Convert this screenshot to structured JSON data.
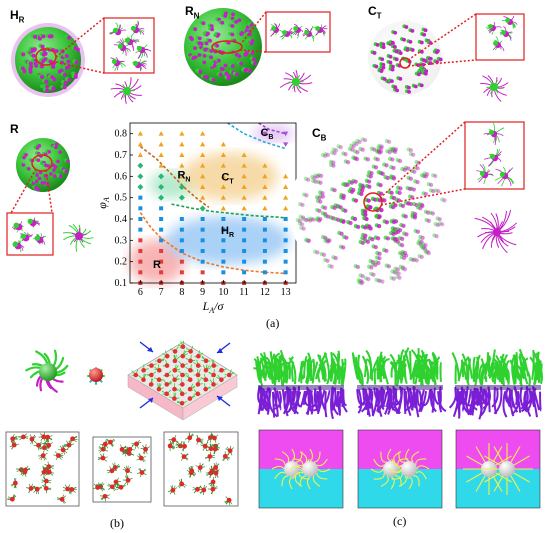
{
  "panel_labels": {
    "HR": {
      "main": "H",
      "sub": "R"
    },
    "RN": {
      "main": "R",
      "sub": "N"
    },
    "CT": {
      "main": "C",
      "sub": "T"
    },
    "R": {
      "main": "R",
      "sub": ""
    },
    "CB": {
      "main": "C",
      "sub": "B"
    }
  },
  "captions": {
    "a": "(a)",
    "b": "(b)",
    "c": "(c)"
  },
  "colors": {
    "green": "#2ed12e",
    "magenta": "#c51fc5",
    "purple": "#7a1fd6",
    "red_box": "#e02020",
    "pink_bg": "#ee4cf0",
    "cyan_bg": "#2fd9ea",
    "yellow_line": "#f2f24a"
  },
  "chart_data": {
    "type": "scatter",
    "xlabel": "L_A/σ",
    "ylabel": "φ_A",
    "xlim": [
      5.5,
      13.5
    ],
    "ylim": [
      0.1,
      0.85
    ],
    "xticks": [
      6,
      7,
      8,
      9,
      10,
      11,
      12,
      13
    ],
    "yticks": [
      0.1,
      0.2,
      0.3,
      0.4,
      0.5,
      0.6,
      0.7,
      0.8
    ],
    "region_labels": [
      {
        "main": "R",
        "sub": "",
        "x": 6.8,
        "y": 0.17
      },
      {
        "main": "H",
        "sub": "R",
        "x": 10.2,
        "y": 0.33
      },
      {
        "main": "R",
        "sub": "N",
        "x": 8.1,
        "y": 0.59
      },
      {
        "main": "C",
        "sub": "T",
        "x": 10.2,
        "y": 0.58
      },
      {
        "main": "C",
        "sub": "B",
        "x": 12.1,
        "y": 0.79
      }
    ],
    "series": [
      {
        "phase": "R",
        "marker": "square",
        "color": "#e03c3c",
        "points": [
          [
            6,
            0.1
          ],
          [
            6,
            0.15
          ],
          [
            6,
            0.2
          ],
          [
            6,
            0.25
          ],
          [
            6,
            0.3
          ],
          [
            7,
            0.1
          ],
          [
            7,
            0.15
          ],
          [
            7,
            0.2
          ],
          [
            7,
            0.25
          ],
          [
            8,
            0.1
          ],
          [
            8,
            0.15
          ],
          [
            8,
            0.2
          ],
          [
            9,
            0.1
          ],
          [
            9,
            0.15
          ],
          [
            10,
            0.1
          ],
          [
            11,
            0.1
          ],
          [
            12,
            0.1
          ],
          [
            13,
            0.1
          ]
        ]
      },
      {
        "phase": "H_R",
        "marker": "square",
        "color": "#1a8fe0",
        "points": [
          [
            6,
            0.35
          ],
          [
            6,
            0.4
          ],
          [
            6,
            0.45
          ],
          [
            6,
            0.5
          ],
          [
            7,
            0.3
          ],
          [
            7,
            0.35
          ],
          [
            7,
            0.4
          ],
          [
            7,
            0.45
          ],
          [
            8,
            0.25
          ],
          [
            8,
            0.3
          ],
          [
            8,
            0.35
          ],
          [
            8,
            0.4
          ],
          [
            9,
            0.2
          ],
          [
            9,
            0.25
          ],
          [
            9,
            0.3
          ],
          [
            9,
            0.35
          ],
          [
            9,
            0.4
          ],
          [
            10,
            0.15
          ],
          [
            10,
            0.2
          ],
          [
            10,
            0.25
          ],
          [
            10,
            0.3
          ],
          [
            10,
            0.35
          ],
          [
            10,
            0.4
          ],
          [
            11,
            0.15
          ],
          [
            11,
            0.2
          ],
          [
            11,
            0.25
          ],
          [
            11,
            0.3
          ],
          [
            11,
            0.35
          ],
          [
            11,
            0.4
          ],
          [
            12,
            0.15
          ],
          [
            12,
            0.2
          ],
          [
            12,
            0.25
          ],
          [
            12,
            0.3
          ],
          [
            12,
            0.35
          ],
          [
            12,
            0.4
          ],
          [
            13,
            0.15
          ],
          [
            13,
            0.2
          ],
          [
            13,
            0.25
          ],
          [
            13,
            0.3
          ],
          [
            13,
            0.35
          ],
          [
            13,
            0.4
          ]
        ]
      },
      {
        "phase": "R_N",
        "marker": "diamond",
        "color": "#2bb673",
        "points": [
          [
            6,
            0.55
          ],
          [
            6,
            0.6
          ],
          [
            6,
            0.65
          ],
          [
            7,
            0.5
          ],
          [
            7,
            0.55
          ],
          [
            7,
            0.6
          ],
          [
            8,
            0.5
          ],
          [
            8,
            0.55
          ],
          [
            9,
            0.45
          ]
        ]
      },
      {
        "phase": "C_T",
        "marker": "triangle-up",
        "color": "#f0a21e",
        "points": [
          [
            6,
            0.7
          ],
          [
            6,
            0.75
          ],
          [
            6,
            0.8
          ],
          [
            7,
            0.65
          ],
          [
            7,
            0.7
          ],
          [
            7,
            0.75
          ],
          [
            7,
            0.8
          ],
          [
            8,
            0.6
          ],
          [
            8,
            0.65
          ],
          [
            8,
            0.7
          ],
          [
            8,
            0.75
          ],
          [
            8,
            0.8
          ],
          [
            9,
            0.5
          ],
          [
            9,
            0.55
          ],
          [
            9,
            0.6
          ],
          [
            9,
            0.65
          ],
          [
            9,
            0.7
          ],
          [
            9,
            0.75
          ],
          [
            9,
            0.8
          ],
          [
            10,
            0.45
          ],
          [
            10,
            0.5
          ],
          [
            10,
            0.55
          ],
          [
            10,
            0.6
          ],
          [
            10,
            0.65
          ],
          [
            10,
            0.7
          ],
          [
            10,
            0.75
          ],
          [
            11,
            0.45
          ],
          [
            11,
            0.5
          ],
          [
            11,
            0.55
          ],
          [
            11,
            0.6
          ],
          [
            11,
            0.65
          ],
          [
            11,
            0.7
          ],
          [
            12,
            0.45
          ],
          [
            12,
            0.5
          ],
          [
            12,
            0.55
          ],
          [
            12,
            0.6
          ],
          [
            12,
            0.65
          ],
          [
            13,
            0.45
          ],
          [
            13,
            0.5
          ],
          [
            13,
            0.55
          ],
          [
            13,
            0.6
          ]
        ]
      },
      {
        "phase": "C_B",
        "marker": "triangle-down",
        "color": "#a455d6",
        "points": [
          [
            12,
            0.8
          ],
          [
            13,
            0.75
          ],
          [
            13,
            0.8
          ]
        ]
      }
    ],
    "boundaries": [
      {
        "color": "#ee7722",
        "points": [
          [
            6,
            0.43
          ],
          [
            6.5,
            0.36
          ],
          [
            7,
            0.31
          ],
          [
            8,
            0.24
          ],
          [
            9,
            0.2
          ],
          [
            10,
            0.175
          ],
          [
            11,
            0.16
          ],
          [
            12,
            0.15
          ],
          [
            13,
            0.145
          ]
        ]
      },
      {
        "color": "#1aa24a",
        "points": [
          [
            7.5,
            0.47
          ],
          [
            8.5,
            0.45
          ],
          [
            9.5,
            0.435
          ],
          [
            10.5,
            0.425
          ],
          [
            11.5,
            0.415
          ],
          [
            12.5,
            0.41
          ],
          [
            13,
            0.405
          ]
        ]
      },
      {
        "color": "#c8641c",
        "points": [
          [
            6,
            0.74
          ],
          [
            6.8,
            0.68
          ],
          [
            7.5,
            0.61
          ],
          [
            8.2,
            0.54
          ],
          [
            8.8,
            0.49
          ],
          [
            9.3,
            0.455
          ]
        ]
      },
      {
        "color": "#22aadd",
        "points": [
          [
            10.2,
            0.85
          ],
          [
            11,
            0.8
          ],
          [
            12,
            0.76
          ],
          [
            13,
            0.73
          ]
        ]
      },
      {
        "color": "#9a4ac8",
        "points": [
          [
            11.7,
            0.85
          ],
          [
            12.2,
            0.82
          ],
          [
            13,
            0.8
          ]
        ]
      }
    ],
    "grid": false,
    "legend": "none"
  }
}
